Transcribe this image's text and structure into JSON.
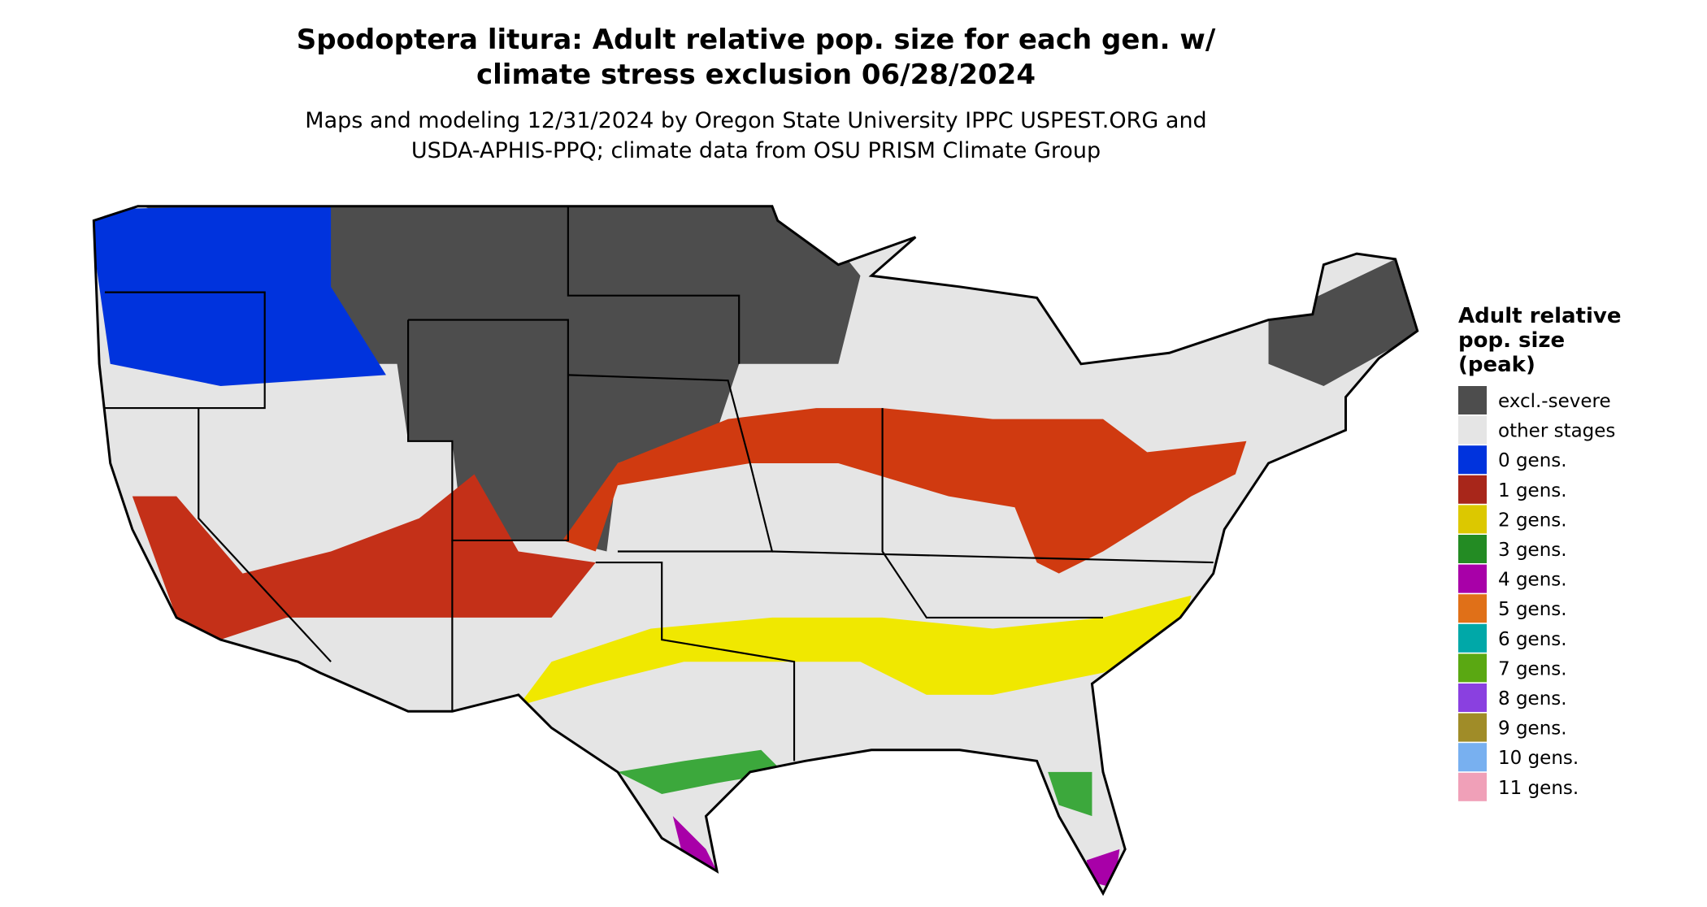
{
  "title_lines": [
    "Spodoptera litura: Adult relative pop. size for each gen. w/",
    "climate stress exclusion 06/28/2024"
  ],
  "subtitle_lines": [
    "Maps and modeling 12/31/2024 by Oregon State University IPPC USPEST.ORG and",
    "USDA-APHIS-PPQ; climate data from OSU PRISM Climate Group"
  ],
  "legend": {
    "title_lines": [
      "Adult relative",
      "pop. size",
      "(peak)"
    ],
    "items": [
      {
        "label": "excl.-severe",
        "color": "#4d4d4d"
      },
      {
        "label": "other stages",
        "color": "#e5e5e5"
      },
      {
        "label": "0 gens.",
        "color": "#0033dd"
      },
      {
        "label": "1 gens.",
        "color": "#a8261a"
      },
      {
        "label": "2 gens.",
        "color": "#dcc800"
      },
      {
        "label": "3 gens.",
        "color": "#238b23"
      },
      {
        "label": "4 gens.",
        "color": "#a800a8"
      },
      {
        "label": "5 gens.",
        "color": "#e07018"
      },
      {
        "label": "6 gens.",
        "color": "#00a8a8"
      },
      {
        "label": "7 gens.",
        "color": "#5aa812"
      },
      {
        "label": "8 gens.",
        "color": "#8a40e0"
      },
      {
        "label": "9 gens.",
        "color": "#a08c28"
      },
      {
        "label": "10 gens.",
        "color": "#78b0f0"
      },
      {
        "label": "11 gens.",
        "color": "#f0a0b8"
      }
    ]
  }
}
